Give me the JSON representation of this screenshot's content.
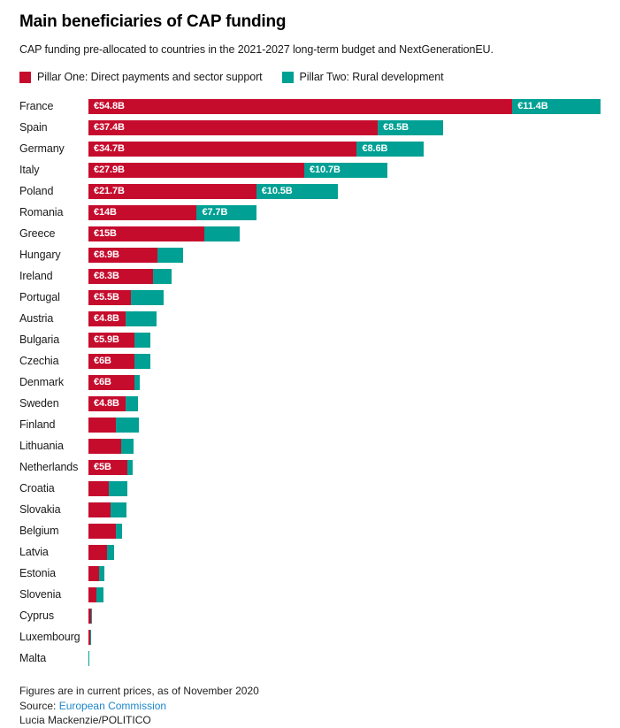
{
  "header": {
    "title": "Main beneficiaries of CAP funding",
    "subtitle": "CAP funding pre-allocated to countries in the 2021-2027 long-term budget and NextGenerationEU."
  },
  "colors": {
    "pillar_one": "#c60c2d",
    "pillar_two": "#00a094",
    "link": "#1d87c9",
    "bar_label": "#ffffff"
  },
  "legend": [
    {
      "label": "Pillar One: Direct payments and sector support",
      "color": "#c60c2d"
    },
    {
      "label": "Pillar Two: Rural development",
      "color": "#00a094"
    }
  ],
  "chart_data": {
    "type": "bar",
    "orientation": "horizontal",
    "stacked": true,
    "unit": "billion EUR",
    "xlim": [
      0,
      66.2
    ],
    "grid": false,
    "legend_position": "top",
    "series_names": [
      "Pillar One: Direct payments and sector support",
      "Pillar Two: Rural development"
    ],
    "categories": [
      "France",
      "Spain",
      "Germany",
      "Italy",
      "Poland",
      "Romania",
      "Greece",
      "Hungary",
      "Ireland",
      "Portugal",
      "Austria",
      "Bulgaria",
      "Czechia",
      "Denmark",
      "Sweden",
      "Finland",
      "Lithuania",
      "Netherlands",
      "Croatia",
      "Slovakia",
      "Belgium",
      "Latvia",
      "Estonia",
      "Slovenia",
      "Cyprus",
      "Luxembourg",
      "Malta"
    ],
    "rows": [
      {
        "country": "France",
        "pillar_one": 54.8,
        "pillar_two": 11.4,
        "pillar_one_label": "€54.8B",
        "pillar_two_label": "€11.4B"
      },
      {
        "country": "Spain",
        "pillar_one": 37.4,
        "pillar_two": 8.5,
        "pillar_one_label": "€37.4B",
        "pillar_two_label": "€8.5B"
      },
      {
        "country": "Germany",
        "pillar_one": 34.7,
        "pillar_two": 8.6,
        "pillar_one_label": "€34.7B",
        "pillar_two_label": "€8.6B"
      },
      {
        "country": "Italy",
        "pillar_one": 27.9,
        "pillar_two": 10.7,
        "pillar_one_label": "€27.9B",
        "pillar_two_label": "€10.7B"
      },
      {
        "country": "Poland",
        "pillar_one": 21.7,
        "pillar_two": 10.5,
        "pillar_one_label": "€21.7B",
        "pillar_two_label": "€10.5B"
      },
      {
        "country": "Romania",
        "pillar_one": 14,
        "pillar_two": 7.7,
        "pillar_one_label": "€14B",
        "pillar_two_label": "€7.7B"
      },
      {
        "country": "Greece",
        "pillar_one": 15,
        "pillar_two": 4.5,
        "pillar_one_label": "€15B",
        "pillar_two_label": ""
      },
      {
        "country": "Hungary",
        "pillar_one": 8.9,
        "pillar_two": 3.3,
        "pillar_one_label": "€8.9B",
        "pillar_two_label": ""
      },
      {
        "country": "Ireland",
        "pillar_one": 8.3,
        "pillar_two": 2.4,
        "pillar_one_label": "€8.3B",
        "pillar_two_label": ""
      },
      {
        "country": "Portugal",
        "pillar_one": 5.5,
        "pillar_two": 4.2,
        "pillar_one_label": "€5.5B",
        "pillar_two_label": ""
      },
      {
        "country": "Austria",
        "pillar_one": 4.8,
        "pillar_two": 4.0,
        "pillar_one_label": "€4.8B",
        "pillar_two_label": ""
      },
      {
        "country": "Bulgaria",
        "pillar_one": 5.9,
        "pillar_two": 2.1,
        "pillar_one_label": "€5.9B",
        "pillar_two_label": ""
      },
      {
        "country": "Czechia",
        "pillar_one": 6,
        "pillar_two": 2.0,
        "pillar_one_label": "€6B",
        "pillar_two_label": ""
      },
      {
        "country": "Denmark",
        "pillar_one": 6,
        "pillar_two": 0.6,
        "pillar_one_label": "€6B",
        "pillar_two_label": ""
      },
      {
        "country": "Sweden",
        "pillar_one": 4.8,
        "pillar_two": 1.6,
        "pillar_one_label": "€4.8B",
        "pillar_two_label": ""
      },
      {
        "country": "Finland",
        "pillar_one": 3.6,
        "pillar_two": 2.9,
        "pillar_one_label": "",
        "pillar_two_label": ""
      },
      {
        "country": "Lithuania",
        "pillar_one": 4.2,
        "pillar_two": 1.6,
        "pillar_one_label": "",
        "pillar_two_label": ""
      },
      {
        "country": "Netherlands",
        "pillar_one": 5,
        "pillar_two": 0.7,
        "pillar_one_label": "€5B",
        "pillar_two_label": ""
      },
      {
        "country": "Croatia",
        "pillar_one": 2.6,
        "pillar_two": 2.4,
        "pillar_one_label": "",
        "pillar_two_label": ""
      },
      {
        "country": "Slovakia",
        "pillar_one": 2.9,
        "pillar_two": 2.0,
        "pillar_one_label": "",
        "pillar_two_label": ""
      },
      {
        "country": "Belgium",
        "pillar_one": 3.6,
        "pillar_two": 0.75,
        "pillar_one_label": "",
        "pillar_two_label": ""
      },
      {
        "country": "Latvia",
        "pillar_one": 2.4,
        "pillar_two": 0.9,
        "pillar_one_label": "",
        "pillar_two_label": ""
      },
      {
        "country": "Estonia",
        "pillar_one": 1.4,
        "pillar_two": 0.7,
        "pillar_one_label": "",
        "pillar_two_label": ""
      },
      {
        "country": "Slovenia",
        "pillar_one": 1.0,
        "pillar_two": 0.9,
        "pillar_one_label": "",
        "pillar_two_label": ""
      },
      {
        "country": "Cyprus",
        "pillar_one": 0.3,
        "pillar_two": 0.15,
        "pillar_one_label": "",
        "pillar_two_label": ""
      },
      {
        "country": "Luxembourg",
        "pillar_one": 0.25,
        "pillar_two": 0.1,
        "pillar_one_label": "",
        "pillar_two_label": ""
      },
      {
        "country": "Malta",
        "pillar_one": 0.04,
        "pillar_two": 0.15,
        "pillar_one_label": "",
        "pillar_two_label": ""
      }
    ]
  },
  "footer": {
    "note": "Figures are in current prices, as of November 2020",
    "source_prefix": "Source: ",
    "source_link": "European Commission",
    "credit": "Lucia Mackenzie/POLITICO"
  }
}
